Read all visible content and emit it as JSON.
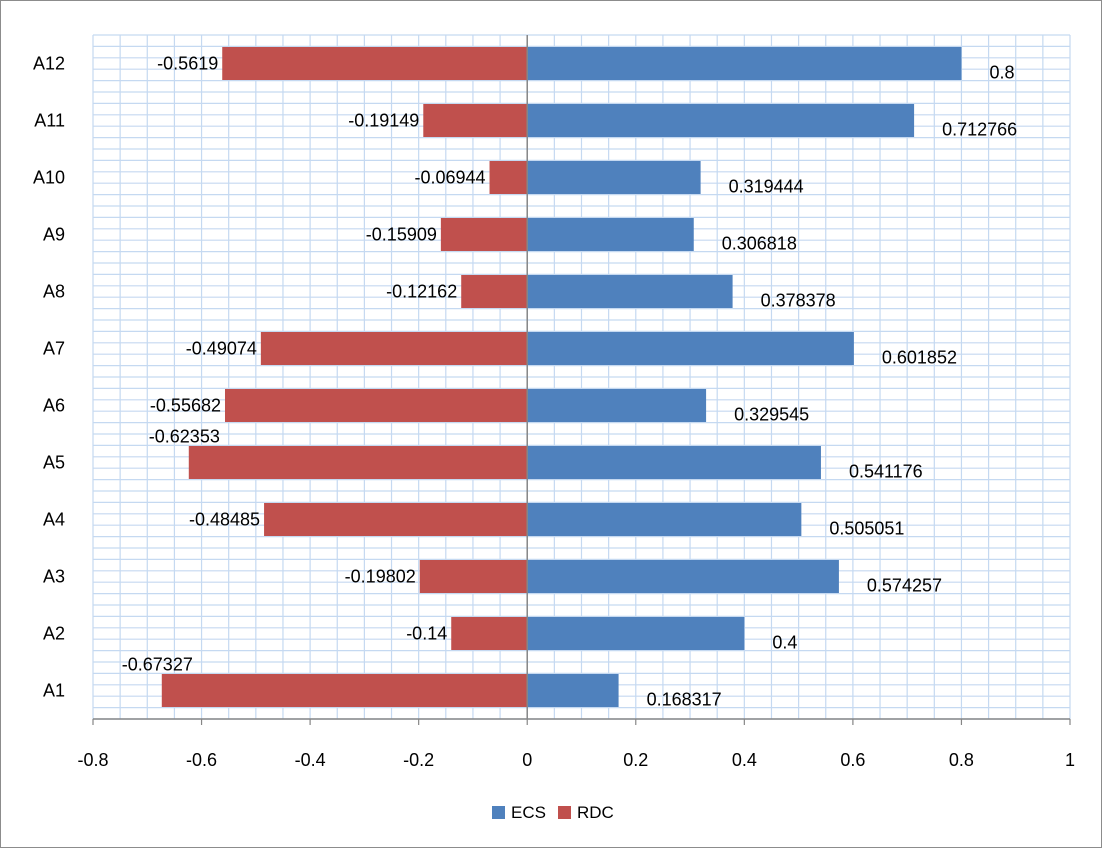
{
  "chart_data": {
    "type": "bar",
    "orientation": "horizontal",
    "stacked": true,
    "title": "",
    "xlabel": "",
    "ylabel": "",
    "xlim": [
      -0.8,
      1
    ],
    "x_ticks": [
      "-0.8",
      "-0.6",
      "-0.4",
      "-0.2",
      "0",
      "0.2",
      "0.4",
      "0.6",
      "0.8",
      "1"
    ],
    "categories": [
      "A1",
      "A2",
      "A3",
      "A4",
      "A5",
      "A6",
      "A7",
      "A8",
      "A9",
      "A10",
      "A11",
      "A12"
    ],
    "series": [
      {
        "name": "ECS",
        "color": "#4F81BD",
        "values": [
          0.168317,
          0.4,
          0.574257,
          0.505051,
          0.541176,
          0.329545,
          0.601852,
          0.378378,
          0.306818,
          0.319444,
          0.712766,
          0.8
        ],
        "labels": [
          "0.168317",
          "0.4",
          "0.574257",
          "0.505051",
          "0.541176",
          "0.329545",
          "0.601852",
          "0.378378",
          "0.306818",
          "0.319444",
          "0.712766",
          "0.8"
        ]
      },
      {
        "name": "RDC",
        "color": "#C0504D",
        "values": [
          -0.67327,
          -0.14,
          -0.19802,
          -0.48485,
          -0.62353,
          -0.55682,
          -0.49074,
          -0.12162,
          -0.15909,
          -0.06944,
          -0.19149,
          -0.5619
        ],
        "labels": [
          "-0.67327",
          "-0.14",
          "-0.19802",
          "-0.48485",
          "-0.62353",
          "-0.55682",
          "-0.49074",
          "-0.12162",
          "-0.15909",
          "-0.06944",
          "-0.19149",
          "-0.5619"
        ]
      }
    ],
    "grid": true,
    "legend_position": "bottom"
  }
}
